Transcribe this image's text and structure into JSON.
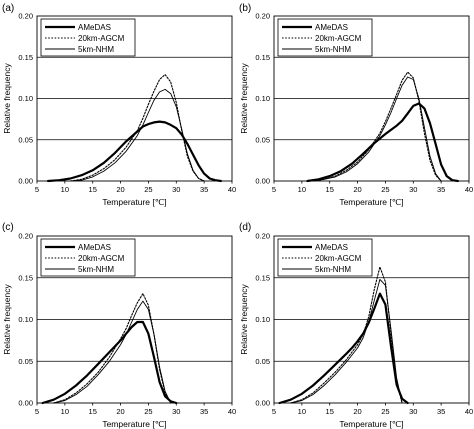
{
  "figure": {
    "xlabel": "Temperature [℃]",
    "ylabel": "Relative frequency",
    "legend": [
      "AMeDAS",
      "20km-AGCM",
      "5km-NHM"
    ]
  },
  "chart_data": [
    {
      "panel": "(a)",
      "type": "line",
      "xlabel": "Temperature [℃]",
      "ylabel": "Relative frequency",
      "xlim": [
        5,
        40
      ],
      "ylim": [
        0,
        0.2
      ],
      "xticks": [
        "5",
        "10",
        "15",
        "20",
        "25",
        "30",
        "35",
        "40"
      ],
      "yticks": [
        "0.00",
        "0.05",
        "0.10",
        "0.15",
        "0.20"
      ],
      "grid": "horizontal",
      "legend_position": "top-left",
      "series": [
        {
          "name": "AMeDAS",
          "style": "thick",
          "x": [
            7,
            9,
            11,
            13,
            15,
            17,
            19,
            21,
            23,
            24,
            25,
            26,
            27,
            28,
            29,
            30,
            31,
            32,
            33,
            34,
            35,
            36,
            37,
            38
          ],
          "y": [
            0,
            0.001,
            0.003,
            0.007,
            0.013,
            0.022,
            0.034,
            0.048,
            0.06,
            0.066,
            0.069,
            0.071,
            0.072,
            0.071,
            0.068,
            0.064,
            0.056,
            0.045,
            0.032,
            0.019,
            0.009,
            0.003,
            0.001,
            0
          ]
        },
        {
          "name": "20km-AGCM",
          "style": "dotted",
          "x": [
            11,
            13,
            15,
            17,
            19,
            21,
            23,
            24,
            25,
            26,
            27,
            28,
            29,
            30,
            31,
            32,
            33,
            34,
            35
          ],
          "y": [
            0,
            0.002,
            0.007,
            0.015,
            0.026,
            0.041,
            0.061,
            0.076,
            0.093,
            0.109,
            0.123,
            0.129,
            0.12,
            0.095,
            0.06,
            0.03,
            0.012,
            0.003,
            0
          ]
        },
        {
          "name": "5km-NHM",
          "style": "thin",
          "x": [
            11,
            13,
            15,
            17,
            19,
            21,
            23,
            24,
            25,
            26,
            27,
            28,
            29,
            30,
            31,
            32,
            33,
            34,
            35
          ],
          "y": [
            0,
            0.001,
            0.005,
            0.012,
            0.022,
            0.036,
            0.055,
            0.068,
            0.083,
            0.098,
            0.108,
            0.111,
            0.106,
            0.09,
            0.062,
            0.033,
            0.013,
            0.003,
            0
          ]
        }
      ]
    },
    {
      "panel": "(b)",
      "type": "line",
      "xlabel": "Temperature [℃]",
      "ylabel": "Relative frequency",
      "xlim": [
        5,
        40
      ],
      "ylim": [
        0,
        0.2
      ],
      "xticks": [
        "5",
        "10",
        "15",
        "20",
        "25",
        "30",
        "35",
        "40"
      ],
      "yticks": [
        "0.00",
        "0.05",
        "0.10",
        "0.15",
        "0.20"
      ],
      "grid": "horizontal",
      "legend_position": "top-left",
      "series": [
        {
          "name": "AMeDAS",
          "style": "thick",
          "x": [
            11,
            13,
            15,
            17,
            19,
            21,
            23,
            25,
            27,
            28,
            29,
            30,
            31,
            32,
            33,
            34,
            35,
            36,
            37,
            38
          ],
          "y": [
            0,
            0.002,
            0.006,
            0.012,
            0.021,
            0.033,
            0.046,
            0.057,
            0.067,
            0.073,
            0.082,
            0.091,
            0.094,
            0.088,
            0.07,
            0.045,
            0.02,
            0.006,
            0.001,
            0
          ]
        },
        {
          "name": "20km-AGCM",
          "style": "dotted",
          "x": [
            12,
            14,
            16,
            18,
            20,
            22,
            24,
            25,
            26,
            27,
            28,
            29,
            30,
            31,
            32,
            33,
            34,
            35
          ],
          "y": [
            0,
            0.002,
            0.006,
            0.013,
            0.023,
            0.038,
            0.058,
            0.072,
            0.088,
            0.105,
            0.122,
            0.132,
            0.125,
            0.097,
            0.058,
            0.025,
            0.007,
            0
          ]
        },
        {
          "name": "5km-NHM",
          "style": "thin",
          "x": [
            12,
            14,
            16,
            18,
            20,
            22,
            24,
            25,
            26,
            27,
            28,
            29,
            30,
            31,
            32,
            33,
            34,
            35
          ],
          "y": [
            0,
            0.002,
            0.005,
            0.011,
            0.021,
            0.035,
            0.055,
            0.068,
            0.083,
            0.1,
            0.116,
            0.126,
            0.123,
            0.1,
            0.065,
            0.03,
            0.009,
            0
          ]
        }
      ]
    },
    {
      "panel": "(c)",
      "type": "line",
      "xlabel": "Temperature [℃]",
      "ylabel": "Relative frequency",
      "xlim": [
        5,
        40
      ],
      "ylim": [
        0,
        0.2
      ],
      "xticks": [
        "5",
        "10",
        "15",
        "20",
        "25",
        "30",
        "35",
        "40"
      ],
      "yticks": [
        "0.00",
        "0.05",
        "0.10",
        "0.15",
        "0.20"
      ],
      "grid": "horizontal",
      "legend_position": "top-left",
      "series": [
        {
          "name": "AMeDAS",
          "style": "thick",
          "x": [
            6,
            8,
            10,
            12,
            14,
            16,
            18,
            19,
            20,
            21,
            22,
            23,
            24,
            25,
            26,
            27,
            28,
            29,
            30
          ],
          "y": [
            0,
            0.004,
            0.011,
            0.021,
            0.033,
            0.047,
            0.061,
            0.068,
            0.075,
            0.083,
            0.091,
            0.097,
            0.097,
            0.083,
            0.055,
            0.025,
            0.008,
            0.002,
            0
          ]
        },
        {
          "name": "20km-AGCM",
          "style": "dotted",
          "x": [
            8,
            10,
            12,
            14,
            16,
            18,
            20,
            21,
            22,
            23,
            24,
            25,
            26,
            27,
            28,
            29
          ],
          "y": [
            0,
            0.004,
            0.012,
            0.023,
            0.037,
            0.055,
            0.077,
            0.089,
            0.105,
            0.12,
            0.131,
            0.117,
            0.082,
            0.04,
            0.012,
            0
          ]
        },
        {
          "name": "5km-NHM",
          "style": "thin",
          "x": [
            8,
            10,
            12,
            14,
            16,
            18,
            20,
            21,
            22,
            23,
            24,
            25,
            26,
            27,
            28,
            29
          ],
          "y": [
            0,
            0.003,
            0.01,
            0.02,
            0.034,
            0.05,
            0.07,
            0.082,
            0.097,
            0.112,
            0.122,
            0.112,
            0.082,
            0.043,
            0.014,
            0
          ]
        }
      ]
    },
    {
      "panel": "(d)",
      "type": "line",
      "xlabel": "Temperature [℃]",
      "ylabel": "Relative frequency",
      "xlim": [
        5,
        40
      ],
      "ylim": [
        0,
        0.2
      ],
      "xticks": [
        "5",
        "10",
        "15",
        "20",
        "25",
        "30",
        "35",
        "40"
      ],
      "yticks": [
        "0.00",
        "0.05",
        "0.10",
        "0.15",
        "0.20"
      ],
      "grid": "horizontal",
      "legend_position": "top-left",
      "series": [
        {
          "name": "AMeDAS",
          "style": "thick",
          "x": [
            6,
            8,
            10,
            12,
            14,
            16,
            18,
            19,
            20,
            21,
            22,
            23,
            24,
            25,
            26,
            27,
            28,
            29
          ],
          "y": [
            0,
            0.004,
            0.011,
            0.021,
            0.033,
            0.046,
            0.059,
            0.066,
            0.074,
            0.083,
            0.096,
            0.113,
            0.131,
            0.118,
            0.068,
            0.022,
            0.005,
            0
          ]
        },
        {
          "name": "20km-AGCM",
          "style": "dotted",
          "x": [
            8,
            10,
            12,
            14,
            16,
            18,
            20,
            21,
            22,
            23,
            24,
            25,
            26,
            27,
            28
          ],
          "y": [
            0,
            0.004,
            0.012,
            0.024,
            0.037,
            0.052,
            0.07,
            0.082,
            0.103,
            0.136,
            0.163,
            0.145,
            0.083,
            0.025,
            0
          ]
        },
        {
          "name": "5km-NHM",
          "style": "thin",
          "x": [
            8,
            10,
            12,
            14,
            16,
            18,
            20,
            21,
            22,
            23,
            24,
            25,
            26,
            27,
            28
          ],
          "y": [
            0,
            0.003,
            0.01,
            0.021,
            0.034,
            0.049,
            0.066,
            0.078,
            0.097,
            0.123,
            0.148,
            0.141,
            0.088,
            0.03,
            0
          ]
        }
      ]
    }
  ]
}
